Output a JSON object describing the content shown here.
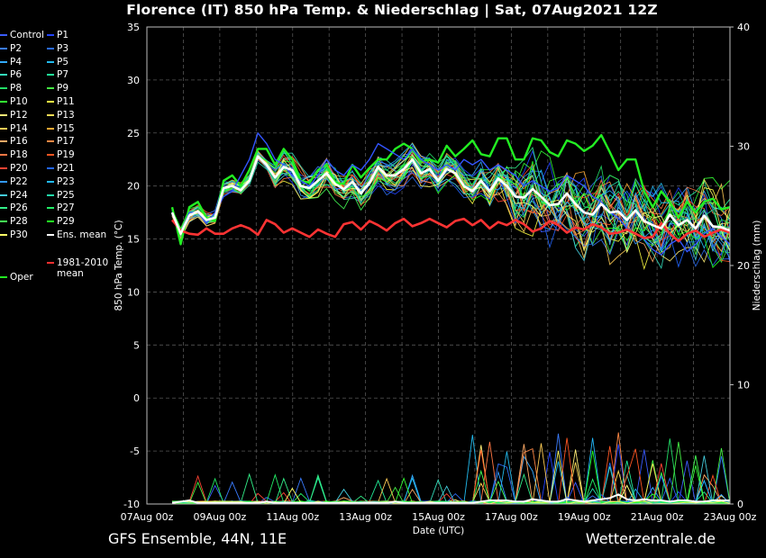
{
  "title": "Florence  (IT)  850 hPa Temp. & Niederschlag | Sat, 07Aug2021 12Z",
  "footer": {
    "left": "GFS Ensemble, 44N, 11E",
    "right": "Wetterzentrale.de"
  },
  "colors": {
    "background": "#000000",
    "ens_mean": "#ffffff",
    "climate_mean": "#ff3030",
    "oper": "#22dd22",
    "control": "#3355ff"
  },
  "legend": [
    {
      "label": "Control",
      "color": "#3a5cff"
    },
    {
      "label": "P1",
      "color": "#2244ff"
    },
    {
      "label": "P2",
      "color": "#3a7cff"
    },
    {
      "label": "P3",
      "color": "#2a6cf0"
    },
    {
      "label": "P4",
      "color": "#33aaff"
    },
    {
      "label": "P5",
      "color": "#22bbee"
    },
    {
      "label": "P6",
      "color": "#33ddbb"
    },
    {
      "label": "P7",
      "color": "#22ee99"
    },
    {
      "label": "P8",
      "color": "#22dd66"
    },
    {
      "label": "P9",
      "color": "#44ee44"
    },
    {
      "label": "P10",
      "color": "#33ff33"
    },
    {
      "label": "P11",
      "color": "#ffff44"
    },
    {
      "label": "P12",
      "color": "#ffee77"
    },
    {
      "label": "P13",
      "color": "#ffdd55"
    },
    {
      "label": "P14",
      "color": "#ffcc55"
    },
    {
      "label": "P15",
      "color": "#ffaa33"
    },
    {
      "label": "P16",
      "color": "#ffaa66"
    },
    {
      "label": "P17",
      "color": "#ff8844"
    },
    {
      "label": "P18",
      "color": "#ff7744"
    },
    {
      "label": "P19",
      "color": "#ff5522"
    },
    {
      "label": "P20",
      "color": "#ff4433"
    },
    {
      "label": "P21",
      "color": "#2266ff"
    },
    {
      "label": "P22",
      "color": "#3399ff"
    },
    {
      "label": "P23",
      "color": "#22bbff"
    },
    {
      "label": "P24",
      "color": "#44ccdd"
    },
    {
      "label": "P25",
      "color": "#22ddaa"
    },
    {
      "label": "P26",
      "color": "#33ee88"
    },
    {
      "label": "P27",
      "color": "#22ee66"
    },
    {
      "label": "P28",
      "color": "#44ff55"
    },
    {
      "label": "P29",
      "color": "#22ff22"
    },
    {
      "label": "P30",
      "color": "#ffff66"
    },
    {
      "label": "Ens. mean",
      "color": "#ffffff"
    },
    {
      "label": "1981-2010\nmean",
      "color": "#ff3030"
    },
    {
      "label": "Oper",
      "color": "#22ee22"
    }
  ],
  "chart_data": {
    "type": "line",
    "xlabel": "Date (UTC)",
    "ylabel": "850 hPa Temp. (°C)",
    "y2label": "Niederschlag (mm)",
    "ylim": [
      -10,
      35
    ],
    "y2lim": [
      0,
      40
    ],
    "yticks": [
      "-10",
      "-5",
      "0",
      "5",
      "10",
      "15",
      "20",
      "25",
      "30",
      "35"
    ],
    "y2ticks": [
      "0",
      "10",
      "20",
      "30",
      "40"
    ],
    "xticks": [
      "07Aug 00z",
      "09Aug 00z",
      "11Aug 00z",
      "13Aug 00z",
      "15Aug 00z",
      "17Aug 00z",
      "19Aug 00z",
      "21Aug 00z",
      "23Aug 00z"
    ],
    "x_start": "2021-08-07 00z",
    "x_end": "2021-08-23 00z",
    "step_hours": 6,
    "grid": true,
    "series": [
      {
        "name": "Ens. mean",
        "values": [
          17.5,
          15.5,
          17.2,
          17.6,
          16.8,
          17.0,
          19.8,
          20.0,
          19.6,
          20.5,
          22.8,
          22.0,
          20.8,
          21.8,
          21.5,
          20.0,
          19.8,
          20.5,
          21.2,
          20.2,
          19.7,
          20.4,
          19.3,
          20.3,
          21.8,
          21.0,
          21.0,
          21.6,
          22.5,
          21.2,
          21.6,
          20.5,
          21.6,
          21.2,
          20.0,
          19.5,
          20.5,
          19.5,
          20.7,
          20.0,
          19.0,
          18.9,
          19.7,
          19.0,
          18.2,
          18.3,
          19.3,
          18.3,
          17.5,
          17.3,
          18.3,
          17.5,
          17.6,
          16.8,
          17.7,
          16.7,
          16.3,
          16.0,
          17.3,
          16.3,
          16.8,
          16.0,
          17.2,
          16.2,
          16.1,
          15.8
        ]
      },
      {
        "name": "1981-2010\nmean",
        "values": [
          16.8,
          15.8,
          15.5,
          15.4,
          16.0,
          15.5,
          15.5,
          16.0,
          16.3,
          16.0,
          15.4,
          16.8,
          16.4,
          15.6,
          16.0,
          15.6,
          15.2,
          15.9,
          15.5,
          15.2,
          16.4,
          16.6,
          15.9,
          16.7,
          16.3,
          15.8,
          16.5,
          16.9,
          16.2,
          16.5,
          16.9,
          16.5,
          16.1,
          16.7,
          16.9,
          16.3,
          16.8,
          16.0,
          16.6,
          16.3,
          16.8,
          16.4,
          15.7,
          16.0,
          16.7,
          16.3,
          15.6,
          16.1,
          15.9,
          16.4,
          16.1,
          15.5,
          15.6,
          15.9,
          15.5,
          15.1,
          15.2,
          16.5,
          15.5,
          14.8,
          15.5,
          15.8,
          15.2,
          15.6,
          15.9,
          15.6
        ]
      },
      {
        "name": "Oper",
        "values": [
          18,
          14.5,
          18,
          18.5,
          17,
          16.7,
          20.5,
          21,
          20,
          21.5,
          23.5,
          23.5,
          22,
          23.5,
          22.5,
          20.5,
          20.3,
          21.5,
          22,
          20.3,
          20.2,
          22,
          20.8,
          21.7,
          22.5,
          22.5,
          23.5,
          24,
          23.5,
          22.3,
          22.5,
          22.2,
          23.8,
          22.8,
          23.5,
          24.3,
          23,
          22.8,
          24.5,
          24.5,
          22.5,
          22.5,
          24.5,
          24.3,
          23.2,
          22.8,
          24.3,
          24,
          23.3,
          23.8,
          24.8,
          23.2,
          21.5,
          22.5,
          22.5,
          19.5,
          18,
          19.5,
          18.5,
          17,
          18.5,
          17.5,
          18.5,
          18.8,
          17.8,
          18
        ]
      },
      {
        "name": "Control",
        "values": [
          17.5,
          15.5,
          17.5,
          17.5,
          16.5,
          17.5,
          19,
          19.5,
          21,
          22.5,
          25,
          24,
          22.5,
          22,
          21,
          20.5,
          20,
          21,
          22.5,
          21.5,
          21,
          22,
          21.5,
          22.5,
          24,
          23.5,
          23,
          22.5,
          23.5,
          22.5,
          22,
          21.5,
          22,
          21.5,
          22.5,
          22,
          22.5,
          21.5,
          22,
          21.5,
          21,
          20,
          20.5,
          20,
          19.5,
          19.8,
          21,
          20.5,
          20,
          19,
          18.5,
          17.5,
          17,
          16,
          15.5,
          15,
          14,
          13.5,
          14.5,
          15,
          13.8,
          14.5,
          15.5,
          16,
          15.2,
          14.5
        ]
      }
    ],
    "precip_mean_mm": [
      0.1,
      0.2,
      0.3,
      0.1,
      0.1,
      0.1,
      0.1,
      0.1,
      0.1,
      0.1,
      0.1,
      0.2,
      0.1,
      0.1,
      0.1,
      0.1,
      0.1,
      0.1,
      0.1,
      0.1,
      0.1,
      0.1,
      0.1,
      0.1,
      0.1,
      0.1,
      0.2,
      0.1,
      0.1,
      0.1,
      0.1,
      0.1,
      0.1,
      0.1,
      0.1,
      0.1,
      0.2,
      0.3,
      0.3,
      0.3,
      0.2,
      0.2,
      0.4,
      0.3,
      0.2,
      0.2,
      0.4,
      0.3,
      0.2,
      0.3,
      0.4,
      0.5,
      0.8,
      0.4,
      0.3,
      0.4,
      0.3,
      0.3,
      0.2,
      0.3,
      0.3,
      0.2,
      0.2,
      0.3,
      0.3,
      0.3
    ]
  }
}
